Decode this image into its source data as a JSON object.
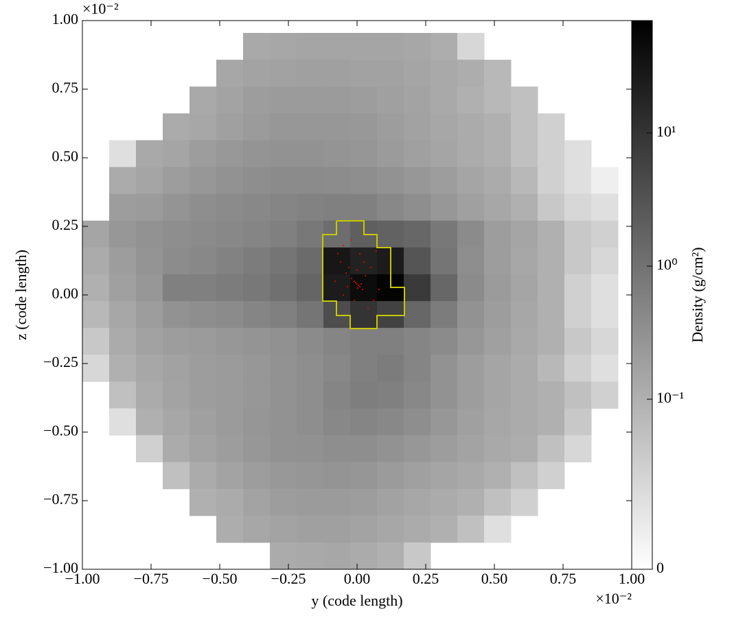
{
  "chart_data": {
    "type": "projection",
    "xlabel": "y  (code length)",
    "ylabel": "z  (code length)",
    "x_offset_label": "×10⁻²",
    "y_offset_label": "×10⁻²",
    "xlim": [
      -1,
      1
    ],
    "ylim": [
      -1,
      1
    ],
    "xticks": [
      {
        "value": -1,
        "label": "−1.00"
      },
      {
        "value": -0.75,
        "label": "−0.75"
      },
      {
        "value": -0.5,
        "label": "−0.50"
      },
      {
        "value": -0.25,
        "label": "−0.25"
      },
      {
        "value": 0,
        "label": "0.00"
      },
      {
        "value": 0.25,
        "label": "0.25"
      },
      {
        "value": 0.5,
        "label": "0.50"
      },
      {
        "value": 0.75,
        "label": "0.75"
      },
      {
        "value": 1,
        "label": "1.00"
      }
    ],
    "yticks": [
      {
        "value": -1,
        "label": "−1.00"
      },
      {
        "value": -0.75,
        "label": "−0.75"
      },
      {
        "value": -0.5,
        "label": "−0.50"
      },
      {
        "value": -0.25,
        "label": "−0.25"
      },
      {
        "value": 0,
        "label": "0.00"
      },
      {
        "value": 0.25,
        "label": "0.25"
      },
      {
        "value": 0.5,
        "label": "0.50"
      },
      {
        "value": 0.75,
        "label": "0.75"
      },
      {
        "value": 1,
        "label": "1.00"
      }
    ],
    "extent_x": [
      -1,
      0.95
    ],
    "extent_y": [
      -1,
      0.955
    ],
    "cells": [
      [
        null,
        null,
        null,
        null,
        null,
        null,
        0.13,
        0.14,
        0.15,
        0.15,
        0.15,
        0.15,
        0.14,
        0.11,
        0.05,
        null,
        null,
        null,
        null,
        null
      ],
      [
        null,
        null,
        null,
        null,
        null,
        0.14,
        0.16,
        0.17,
        0.18,
        0.18,
        0.17,
        0.17,
        0.15,
        0.13,
        0.11,
        0.09,
        null,
        null,
        null,
        null
      ],
      [
        null,
        null,
        null,
        null,
        0.13,
        0.16,
        0.2,
        0.22,
        0.22,
        0.22,
        0.2,
        0.18,
        0.16,
        0.13,
        0.1,
        0.09,
        0.08,
        null,
        null,
        null
      ],
      [
        null,
        null,
        null,
        0.12,
        0.14,
        0.18,
        0.22,
        0.25,
        0.25,
        0.25,
        0.24,
        0.2,
        0.17,
        0.14,
        0.12,
        0.1,
        0.08,
        0.06,
        null,
        null
      ],
      [
        null,
        0.04,
        0.13,
        0.15,
        0.2,
        0.24,
        0.28,
        0.3,
        0.3,
        0.28,
        0.26,
        0.22,
        0.18,
        0.15,
        0.12,
        0.1,
        0.08,
        0.06,
        0.04,
        null
      ],
      [
        null,
        0.12,
        0.15,
        0.2,
        0.25,
        0.3,
        0.35,
        0.4,
        0.4,
        0.38,
        0.35,
        0.3,
        0.25,
        0.2,
        0.15,
        0.12,
        0.09,
        0.06,
        0.04,
        0.02
      ],
      [
        null,
        0.2,
        0.22,
        0.28,
        0.35,
        0.4,
        0.45,
        0.5,
        0.55,
        0.6,
        0.6,
        0.45,
        0.35,
        0.25,
        0.18,
        0.14,
        0.1,
        0.07,
        0.05,
        0.04
      ],
      [
        0.15,
        0.25,
        0.3,
        0.35,
        0.4,
        0.45,
        0.5,
        0.6,
        0.8,
        1.2,
        2,
        1.8,
        1.5,
        0.8,
        0.4,
        0.2,
        0.15,
        0.1,
        0.07,
        0.06
      ],
      [
        0.12,
        0.2,
        0.28,
        0.38,
        0.45,
        0.55,
        0.7,
        0.9,
        1.3,
        30,
        20,
        25,
        3,
        0.9,
        0.35,
        0.2,
        0.14,
        0.1,
        0.07,
        0.05
      ],
      [
        0.1,
        0.18,
        0.25,
        0.6,
        0.6,
        0.7,
        0.8,
        1.1,
        1.6,
        25,
        45,
        60,
        8,
        1.5,
        0.4,
        0.22,
        0.15,
        0.1,
        0.06,
        0.04
      ],
      [
        0.09,
        0.14,
        0.2,
        0.3,
        0.35,
        0.4,
        0.5,
        0.6,
        0.9,
        4,
        10,
        6,
        1.5,
        0.7,
        0.3,
        0.2,
        0.14,
        0.1,
        0.06,
        0.04
      ],
      [
        0.07,
        0.12,
        0.17,
        0.2,
        0.22,
        0.25,
        0.28,
        0.32,
        0.4,
        0.5,
        0.6,
        0.6,
        0.5,
        0.4,
        0.25,
        0.18,
        0.13,
        0.1,
        0.07,
        0.05
      ],
      [
        0.05,
        0.1,
        0.14,
        0.17,
        0.2,
        0.22,
        0.25,
        0.3,
        0.35,
        0.45,
        0.6,
        0.7,
        0.5,
        0.3,
        0.2,
        0.15,
        0.12,
        0.09,
        0.06,
        0.04
      ],
      [
        null,
        0.08,
        0.12,
        0.16,
        0.2,
        0.22,
        0.25,
        0.3,
        0.35,
        0.5,
        0.65,
        0.6,
        0.45,
        0.3,
        0.2,
        0.15,
        0.12,
        0.1,
        0.08,
        0.06
      ],
      [
        null,
        0.04,
        0.1,
        0.14,
        0.18,
        0.22,
        0.26,
        0.3,
        0.35,
        0.45,
        0.5,
        0.45,
        0.35,
        0.25,
        0.18,
        0.14,
        0.12,
        0.1,
        0.07,
        null
      ],
      [
        null,
        null,
        0.06,
        0.12,
        0.16,
        0.2,
        0.25,
        0.3,
        0.32,
        0.35,
        0.35,
        0.3,
        0.25,
        0.2,
        0.16,
        0.13,
        0.11,
        0.08,
        0.05,
        null
      ],
      [
        null,
        null,
        null,
        0.08,
        0.12,
        0.16,
        0.2,
        0.24,
        0.26,
        0.28,
        0.26,
        0.22,
        0.18,
        0.15,
        0.13,
        0.1,
        0.08,
        0.06,
        null,
        null
      ],
      [
        null,
        null,
        null,
        null,
        0.1,
        0.12,
        0.16,
        0.2,
        0.22,
        0.22,
        0.2,
        0.17,
        0.14,
        0.12,
        0.1,
        0.08,
        0.06,
        null,
        null,
        null
      ],
      [
        null,
        null,
        null,
        null,
        null,
        0.11,
        0.14,
        0.16,
        0.18,
        0.18,
        0.16,
        0.14,
        0.12,
        0.1,
        0.08,
        0.04,
        null,
        null,
        null,
        null
      ],
      [
        null,
        null,
        null,
        null,
        null,
        null,
        null,
        0.12,
        0.13,
        0.14,
        0.12,
        0.1,
        0.07,
        null,
        null,
        null,
        null,
        null,
        null,
        null
      ]
    ],
    "contour": {
      "color": "#c8c800",
      "x": [
        -0.075,
        0.025,
        0.025,
        0.0725,
        0.0725,
        0.1225,
        0.1225,
        0.1725,
        0.1725,
        0.0725,
        0.0725,
        -0.025,
        -0.025,
        -0.075,
        -0.075,
        -0.125,
        -0.125,
        -0.075,
        -0.075
      ],
      "y": [
        0.27,
        0.27,
        0.22,
        0.22,
        0.1725,
        0.1725,
        0.0275,
        0.0275,
        -0.075,
        -0.075,
        -0.1225,
        -0.1225,
        -0.075,
        -0.075,
        -0.0225,
        -0.0225,
        0.22,
        0.22,
        0.27
      ]
    },
    "particles": {
      "color": "#ff0000",
      "x": [
        0,
        0.005,
        -0.005,
        0.01,
        -0.01,
        0.002,
        0.015,
        -0.02,
        0.02,
        -0.03,
        -0.07,
        -0.06,
        -0.05,
        -0.04,
        0.03,
        0.05,
        0.06,
        -0.08,
        -0.02,
        0.01,
        0.04,
        -0.01,
        0.07,
        0.08,
        -0.05,
        0.0,
        0.025,
        -0.035
      ],
      "y": [
        0.04,
        0.035,
        0.045,
        0.03,
        0.05,
        0.025,
        0.04,
        0.06,
        0.02,
        0.1,
        0.15,
        0.12,
        0.18,
        0.08,
        0.07,
        0.1,
        -0.02,
        0.05,
        0.2,
        0.15,
        -0.05,
        -0.02,
        0.16,
        0.02,
        0.0,
        0.09,
        0.12,
        0.03
      ]
    },
    "colorbar": {
      "label": "Density  (g/cm²)",
      "cmap": "greys",
      "scale": "symlog",
      "linthresh": 0.1,
      "linscale": 1.278,
      "clim": [
        0,
        70
      ],
      "ticks": [
        0,
        {
          "value": 0.1,
          "label": "10⁻¹"
        },
        {
          "value": 1,
          "label": "10⁰"
        },
        {
          "value": 10,
          "label": "10¹"
        }
      ]
    }
  }
}
